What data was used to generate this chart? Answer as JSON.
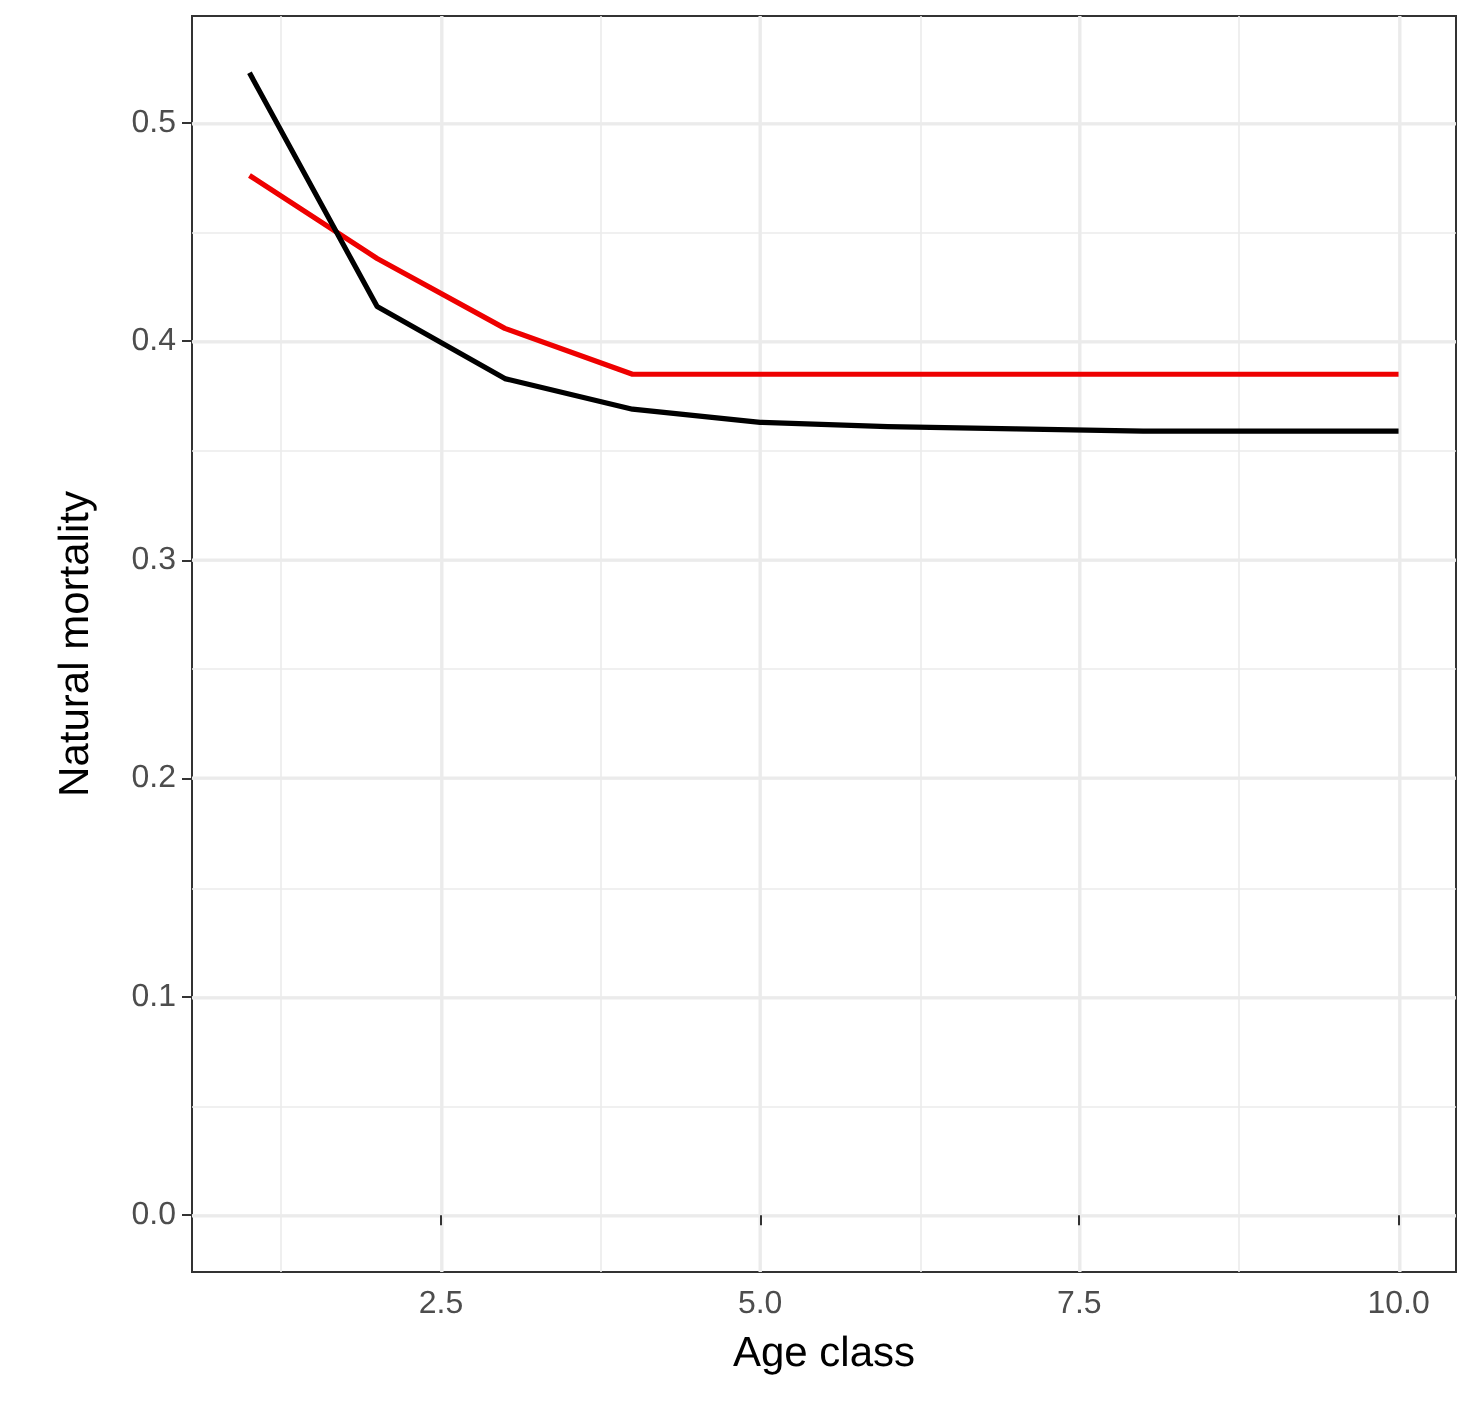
{
  "chart_data": {
    "type": "line",
    "xlabel": "Age class",
    "ylabel": "Natural mortality",
    "x": [
      1,
      2,
      3,
      4,
      5,
      6,
      7,
      8,
      9,
      10
    ],
    "series": [
      {
        "color": "#ee0000",
        "values": [
          0.476,
          0.438,
          0.406,
          0.385,
          0.385,
          0.385,
          0.385,
          0.385,
          0.385,
          0.385
        ]
      },
      {
        "color": "#000000",
        "values": [
          0.523,
          0.416,
          0.383,
          0.369,
          0.363,
          0.361,
          0.36,
          0.359,
          0.359,
          0.359
        ]
      }
    ],
    "xlim": [
      0.55,
      10.45
    ],
    "ylim": [
      -0.026,
      0.549
    ],
    "xticks": [
      {
        "value": 1.25,
        "label": null
      },
      {
        "value": 2.5,
        "label": "2.5"
      },
      {
        "value": 3.75,
        "label": null
      },
      {
        "value": 5,
        "label": "5.0"
      },
      {
        "value": 6.25,
        "label": null
      },
      {
        "value": 7.5,
        "label": "7.5"
      },
      {
        "value": 8.75,
        "label": null
      },
      {
        "value": 10,
        "label": "10.0"
      }
    ],
    "yticks": [
      {
        "value": 0,
        "label": "0.0"
      },
      {
        "value": 0.05,
        "label": null
      },
      {
        "value": 0.1,
        "label": "0.1"
      },
      {
        "value": 0.15,
        "label": null
      },
      {
        "value": 0.2,
        "label": "0.2"
      },
      {
        "value": 0.25,
        "label": null
      },
      {
        "value": 0.3,
        "label": "0.3"
      },
      {
        "value": 0.35,
        "label": null
      },
      {
        "value": 0.4,
        "label": "0.4"
      },
      {
        "value": 0.45,
        "label": null
      },
      {
        "value": 0.5,
        "label": "0.5"
      }
    ],
    "grid": true,
    "marker": "none",
    "line_style": "solid"
  }
}
